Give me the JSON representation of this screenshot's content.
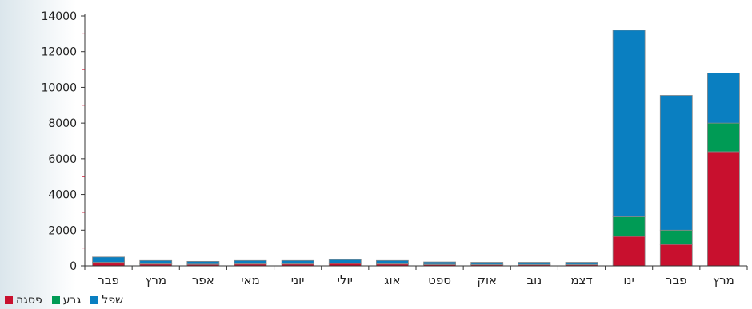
{
  "chart_data": {
    "type": "bar",
    "stacked": true,
    "categories": [
      "פבר",
      "מרץ",
      "אפר",
      "מאי",
      "יוני",
      "יולי",
      "אוג",
      "ספט",
      "אוק",
      "נוב",
      "דצמ",
      "ינו",
      "פבר",
      "מרץ"
    ],
    "series": [
      {
        "name": "פסגה",
        "color": "#c8102e",
        "values": [
          150,
          100,
          80,
          100,
          100,
          130,
          100,
          70,
          60,
          60,
          60,
          1650,
          1200,
          6400
        ]
      },
      {
        "name": "גבע",
        "color": "#009b55",
        "values": [
          50,
          30,
          20,
          30,
          30,
          30,
          30,
          20,
          20,
          20,
          20,
          1100,
          800,
          1600
        ]
      },
      {
        "name": "שפל",
        "color": "#0a7fc1",
        "values": [
          300,
          170,
          150,
          170,
          170,
          190,
          170,
          130,
          120,
          120,
          120,
          10450,
          7550,
          2800
        ]
      }
    ],
    "yticks": [
      0,
      2000,
      4000,
      6000,
      8000,
      10000,
      12000,
      14000
    ],
    "ylim": [
      0,
      14000
    ],
    "grid": false,
    "legend_position": "bottom-left"
  }
}
